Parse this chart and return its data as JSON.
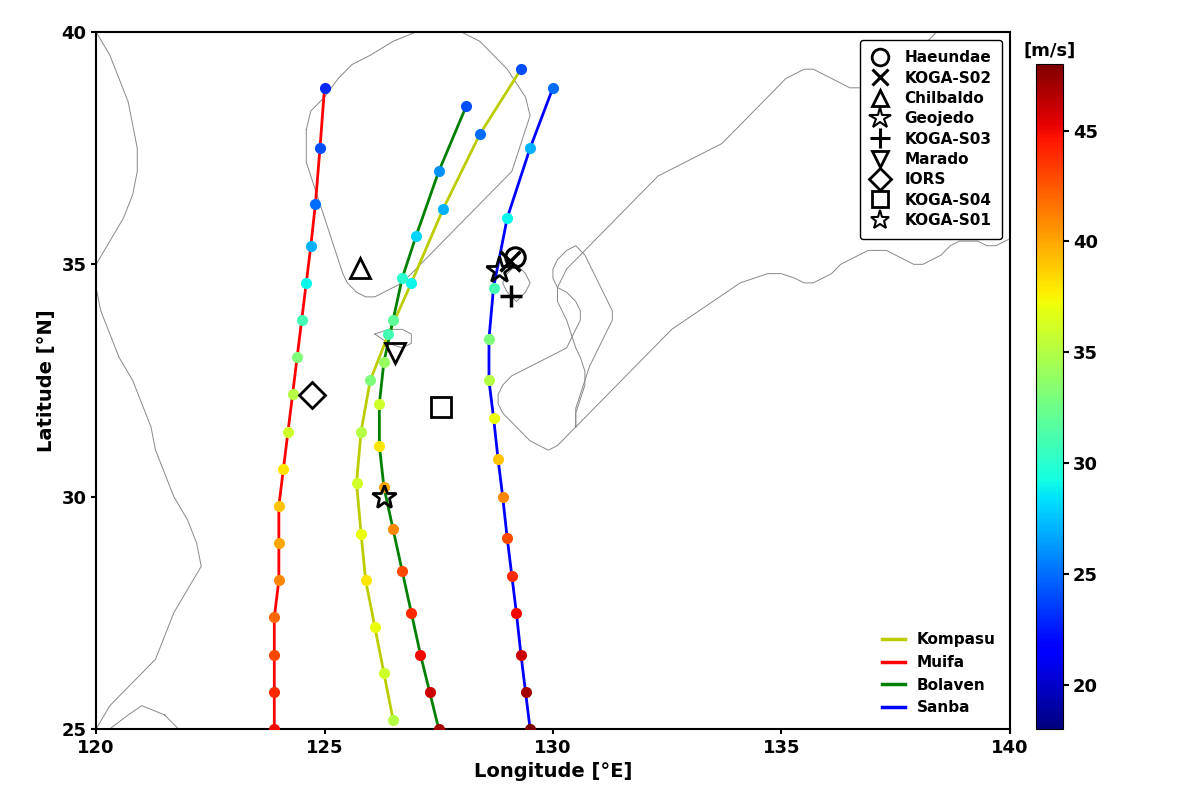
{
  "xlim": [
    120,
    140
  ],
  "ylim": [
    25,
    40
  ],
  "xlabel": "Longitude [°E]",
  "ylabel": "Latitude [°N]",
  "colorbar_label": "[m/s]",
  "colorbar_ticks": [
    20,
    25,
    30,
    35,
    40,
    45
  ],
  "vmin": 18,
  "vmax": 48,
  "stations": {
    "Haeundae": {
      "lon": 129.16,
      "lat": 35.16
    },
    "KOGA-S02": {
      "lon": 129.07,
      "lat": 35.08
    },
    "Chilbaldo": {
      "lon": 125.77,
      "lat": 34.93
    },
    "Geojedo": {
      "lon": 128.83,
      "lat": 34.87
    },
    "KOGA-S03": {
      "lon": 129.08,
      "lat": 34.32
    },
    "Marado": {
      "lon": 126.55,
      "lat": 33.1
    },
    "IORS": {
      "lon": 124.72,
      "lat": 32.18
    },
    "KOGA-S04": {
      "lon": 127.55,
      "lat": 31.93
    },
    "KOGA-S01": {
      "lon": 126.3,
      "lat": 30.0
    }
  },
  "kompasu": {
    "color": "#bbcc00",
    "lons": [
      126.5,
      126.3,
      126.1,
      125.9,
      125.8,
      125.7,
      125.8,
      126.0,
      126.4,
      126.9,
      127.6,
      128.4,
      129.3
    ],
    "lats": [
      25.2,
      26.2,
      27.2,
      28.2,
      29.2,
      30.3,
      31.4,
      32.5,
      33.5,
      34.6,
      36.2,
      37.8,
      39.2
    ],
    "speeds": [
      35,
      36,
      37,
      38,
      37,
      36,
      35,
      33,
      31,
      29,
      27,
      25,
      24
    ]
  },
  "muifa": {
    "color": "red",
    "lons": [
      123.9,
      123.9,
      123.9,
      123.9,
      124.0,
      124.0,
      124.0,
      124.1,
      124.2,
      124.3,
      124.4,
      124.5,
      124.6,
      124.7,
      124.8,
      124.9,
      125.0
    ],
    "lats": [
      25.0,
      25.8,
      26.6,
      27.4,
      28.2,
      29.0,
      29.8,
      30.6,
      31.4,
      32.2,
      33.0,
      33.8,
      34.6,
      35.4,
      36.3,
      37.5,
      38.8
    ],
    "speeds": [
      45,
      44,
      43,
      42,
      41,
      40,
      39,
      38,
      36,
      35,
      33,
      31,
      29,
      27,
      25,
      24,
      23
    ]
  },
  "bolaven": {
    "color": "green",
    "lons": [
      127.5,
      127.3,
      127.1,
      126.9,
      126.7,
      126.5,
      126.3,
      126.2,
      126.2,
      126.3,
      126.5,
      126.7,
      127.0,
      127.5,
      128.1
    ],
    "lats": [
      25.0,
      25.8,
      26.6,
      27.5,
      28.4,
      29.3,
      30.2,
      31.1,
      32.0,
      32.9,
      33.8,
      34.7,
      35.6,
      37.0,
      38.4
    ],
    "speeds": [
      47,
      46,
      45,
      44,
      43,
      41,
      40,
      38,
      36,
      34,
      32,
      30,
      28,
      26,
      24
    ]
  },
  "sanba": {
    "color": "blue",
    "lons": [
      129.5,
      129.4,
      129.3,
      129.2,
      129.1,
      129.0,
      128.9,
      128.8,
      128.7,
      128.6,
      128.6,
      128.7,
      129.0,
      129.5,
      130.0
    ],
    "lats": [
      25.0,
      25.8,
      26.6,
      27.5,
      28.3,
      29.1,
      30.0,
      30.8,
      31.7,
      32.5,
      33.4,
      34.5,
      36.0,
      37.5,
      38.8
    ],
    "speeds": [
      48,
      47,
      46,
      45,
      44,
      43,
      41,
      39,
      37,
      35,
      33,
      31,
      29,
      27,
      25
    ]
  },
  "coastline_color": "#888888",
  "background_color": "white",
  "title_fontsize": 13,
  "axis_fontsize": 14,
  "tick_fontsize": 13,
  "legend_fontsize": 11,
  "cb_fontsize": 13,
  "marker_size": 8,
  "track_lw": 2.0
}
